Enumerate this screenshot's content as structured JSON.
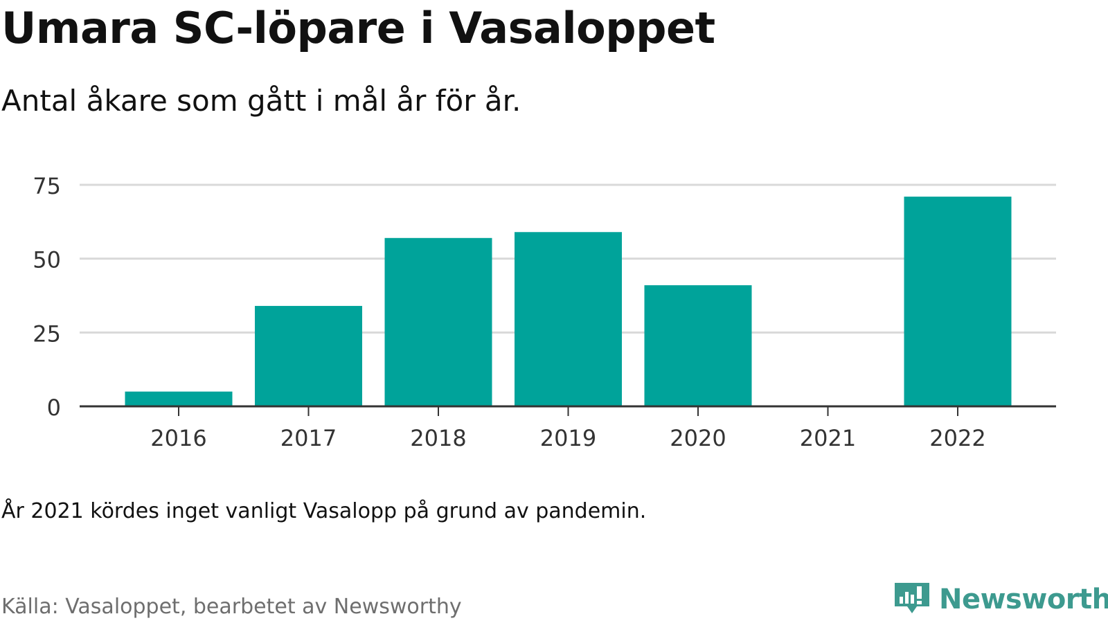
{
  "header": {
    "title": "Umara SC-löpare i Vasaloppet",
    "subtitle": "Antal åkare som gått i mål år för år."
  },
  "footer": {
    "note": "År 2021 kördes inget vanligt Vasalopp på grund av pandemin.",
    "source": "Källa: Vasaloppet, bearbetet av Newsworthy",
    "brand": "Newsworthy",
    "brand_icon": "newsworthy-bar-chart-icon"
  },
  "colors": {
    "bar": "#00a39a",
    "grid": "#d9d9d9",
    "axis": "#333333",
    "brand": "#3d9a8f"
  },
  "chart_data": {
    "type": "bar",
    "title": "Umara SC-löpare i Vasaloppet",
    "subtitle": "Antal åkare som gått i mål år för år.",
    "categories": [
      "2016",
      "2017",
      "2018",
      "2019",
      "2020",
      "2021",
      "2022"
    ],
    "values": [
      5,
      34,
      57,
      59,
      41,
      0,
      71
    ],
    "ylim": [
      0,
      75
    ],
    "yticks": [
      0,
      25,
      50,
      75
    ],
    "xlabel": "",
    "ylabel": "",
    "grid": true
  }
}
